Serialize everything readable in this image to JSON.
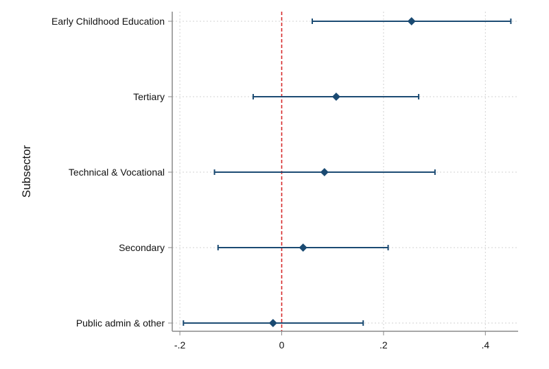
{
  "chart_data": {
    "type": "scatter",
    "subtype": "coefficient plot with confidence intervals",
    "title": "",
    "xlabel": "",
    "ylabel": "Subsector",
    "xlim": [
      -0.22,
      0.465
    ],
    "x_ticks": [
      -0.2,
      0,
      0.2,
      0.4
    ],
    "x_tick_labels": [
      "-.2",
      "0",
      ".2",
      ".4"
    ],
    "grid": true,
    "reference_line": {
      "x": 0,
      "style": "dashed",
      "color": "#d62728"
    },
    "marker": "diamond",
    "color": "#1a4a72",
    "categories": [
      "Early Childhood Education",
      "Tertiary",
      "Technical & Vocational",
      "Secondary",
      "Public admin & other"
    ],
    "estimates": [
      0.255,
      0.107,
      0.084,
      0.042,
      -0.017
    ],
    "ci_low": [
      0.06,
      -0.056,
      -0.132,
      -0.125,
      -0.193
    ],
    "ci_high": [
      0.45,
      0.269,
      0.301,
      0.209,
      0.16
    ]
  }
}
